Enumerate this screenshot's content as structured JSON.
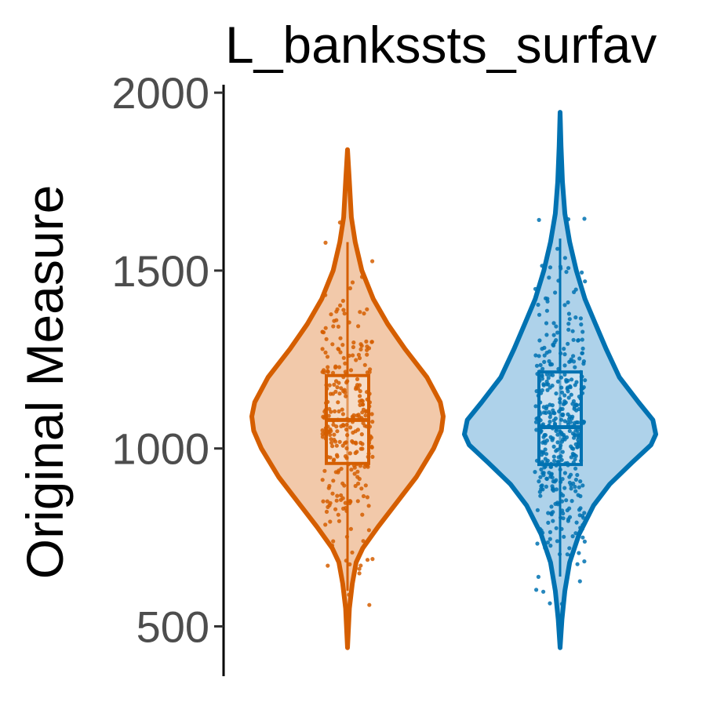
{
  "chart_data": {
    "type": "violin",
    "title": "L_bankssts_surfav",
    "xlabel": "",
    "ylabel": "Original Measure",
    "ylim": [
      360,
      2040
    ],
    "yticks": [
      500,
      1000,
      1500,
      2000
    ],
    "grid": false,
    "legend": "none",
    "groups": [
      {
        "color": "#D55E00",
        "fill": "#F2C9AA",
        "violin_range": [
          440,
          1840
        ],
        "density": [
          [
            440,
            0.0
          ],
          [
            550,
            0.02
          ],
          [
            620,
            0.05
          ],
          [
            680,
            0.09
          ],
          [
            720,
            0.16
          ],
          [
            780,
            0.32
          ],
          [
            850,
            0.52
          ],
          [
            920,
            0.72
          ],
          [
            1000,
            0.9
          ],
          [
            1050,
            0.98
          ],
          [
            1090,
            1.0
          ],
          [
            1130,
            0.97
          ],
          [
            1200,
            0.83
          ],
          [
            1280,
            0.6
          ],
          [
            1350,
            0.42
          ],
          [
            1420,
            0.27
          ],
          [
            1500,
            0.15
          ],
          [
            1580,
            0.08
          ],
          [
            1650,
            0.04
          ],
          [
            1750,
            0.02
          ],
          [
            1840,
            0.0
          ]
        ],
        "box": {
          "q1": 958,
          "median": 1080,
          "q3": 1205,
          "whisker_low": 600,
          "whisker_high": 1580
        }
      },
      {
        "color": "#0072B2",
        "fill": "#AED2EA",
        "violin_range": [
          440,
          1945
        ],
        "density": [
          [
            440,
            0.0
          ],
          [
            520,
            0.02
          ],
          [
            600,
            0.05
          ],
          [
            680,
            0.1
          ],
          [
            760,
            0.2
          ],
          [
            840,
            0.35
          ],
          [
            900,
            0.52
          ],
          [
            960,
            0.75
          ],
          [
            1010,
            0.95
          ],
          [
            1040,
            1.0
          ],
          [
            1080,
            0.97
          ],
          [
            1130,
            0.82
          ],
          [
            1200,
            0.62
          ],
          [
            1280,
            0.48
          ],
          [
            1350,
            0.37
          ],
          [
            1420,
            0.26
          ],
          [
            1500,
            0.17
          ],
          [
            1580,
            0.1
          ],
          [
            1660,
            0.05
          ],
          [
            1750,
            0.025
          ],
          [
            1850,
            0.01
          ],
          [
            1945,
            0.0
          ]
        ],
        "box": {
          "q1": 955,
          "median": 1060,
          "q3": 1215,
          "whisker_low": 640,
          "whisker_high": 1590
        }
      }
    ]
  }
}
